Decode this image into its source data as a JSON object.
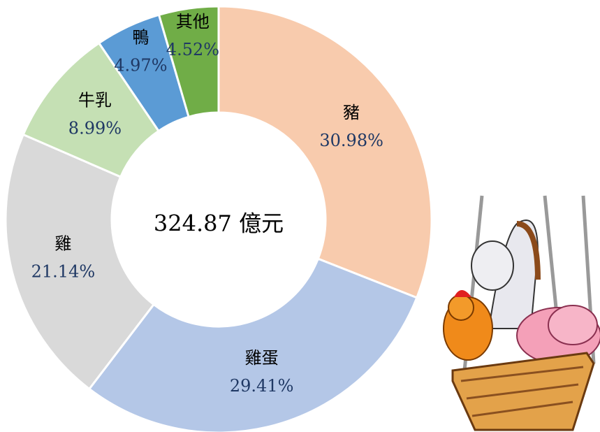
{
  "chart_data": {
    "type": "pie",
    "categories": [
      "豬",
      "雞蛋",
      "雞",
      "牛乳",
      "鴨",
      "其他"
    ],
    "values": [
      30.98,
      29.41,
      21.14,
      8.99,
      4.97,
      4.52
    ],
    "value_labels": [
      "30.98%",
      "29.41%",
      "21.14%",
      "8.99%",
      "4.97%",
      "4.52%"
    ],
    "colors": [
      "#F8CBAD",
      "#B4C7E7",
      "#D9D9D9",
      "#C5E0B4",
      "#5B9BD5",
      "#70AD47"
    ],
    "center_label": "324.87 億元"
  }
}
